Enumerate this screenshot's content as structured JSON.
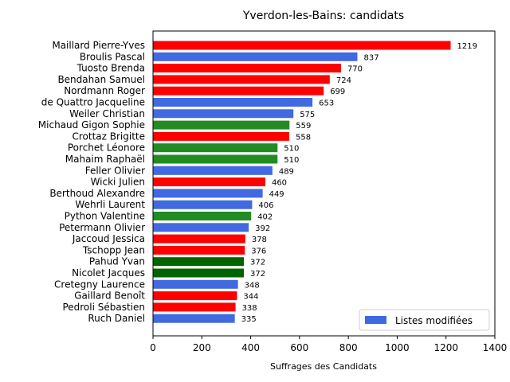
{
  "chart_data": {
    "type": "bar",
    "orientation": "horizontal",
    "title": "Yverdon-les-Bains: candidats",
    "xlabel": "Suffrages des Candidats",
    "ylabel": "",
    "xlim": [
      0,
      1400
    ],
    "xticks": [
      0,
      200,
      400,
      600,
      800,
      1000,
      1200,
      1400
    ],
    "legend": {
      "label": "Listes modifiées",
      "color": "#4169e1",
      "position": "lower-right"
    },
    "bars": [
      {
        "name": "Maillard Pierre-Yves",
        "value": 1219,
        "color": "#ff0000"
      },
      {
        "name": "Broulis Pascal",
        "value": 837,
        "color": "#4169e1"
      },
      {
        "name": "Tuosto Brenda",
        "value": 770,
        "color": "#ff0000"
      },
      {
        "name": "Bendahan Samuel",
        "value": 724,
        "color": "#ff0000"
      },
      {
        "name": "Nordmann Roger",
        "value": 699,
        "color": "#ff0000"
      },
      {
        "name": "de Quattro Jacqueline",
        "value": 653,
        "color": "#4169e1"
      },
      {
        "name": "Weiler Christian",
        "value": 575,
        "color": "#4169e1"
      },
      {
        "name": "Michaud Gigon Sophie",
        "value": 559,
        "color": "#228b22"
      },
      {
        "name": "Crottaz Brigitte",
        "value": 558,
        "color": "#ff0000"
      },
      {
        "name": "Porchet Léonore",
        "value": 510,
        "color": "#228b22"
      },
      {
        "name": "Mahaim Raphaël",
        "value": 510,
        "color": "#228b22"
      },
      {
        "name": "Feller Olivier",
        "value": 489,
        "color": "#4169e1"
      },
      {
        "name": "Wicki Julien",
        "value": 460,
        "color": "#ff0000"
      },
      {
        "name": "Berthoud Alexandre",
        "value": 449,
        "color": "#4169e1"
      },
      {
        "name": "Wehrli Laurent",
        "value": 406,
        "color": "#4169e1"
      },
      {
        "name": "Python Valentine",
        "value": 402,
        "color": "#228b22"
      },
      {
        "name": "Petermann Olivier",
        "value": 392,
        "color": "#4169e1"
      },
      {
        "name": "Jaccoud Jessica",
        "value": 378,
        "color": "#ff0000"
      },
      {
        "name": "Tschopp Jean",
        "value": 376,
        "color": "#ff0000"
      },
      {
        "name": "Pahud Yvan",
        "value": 372,
        "color": "#006400"
      },
      {
        "name": "Nicolet Jacques",
        "value": 372,
        "color": "#006400"
      },
      {
        "name": "Cretegny Laurence",
        "value": 348,
        "color": "#4169e1"
      },
      {
        "name": "Gaillard Benoît",
        "value": 344,
        "color": "#ff0000"
      },
      {
        "name": "Pedroli Sébastien",
        "value": 338,
        "color": "#ff0000"
      },
      {
        "name": "Ruch Daniel",
        "value": 335,
        "color": "#4169e1"
      }
    ]
  }
}
